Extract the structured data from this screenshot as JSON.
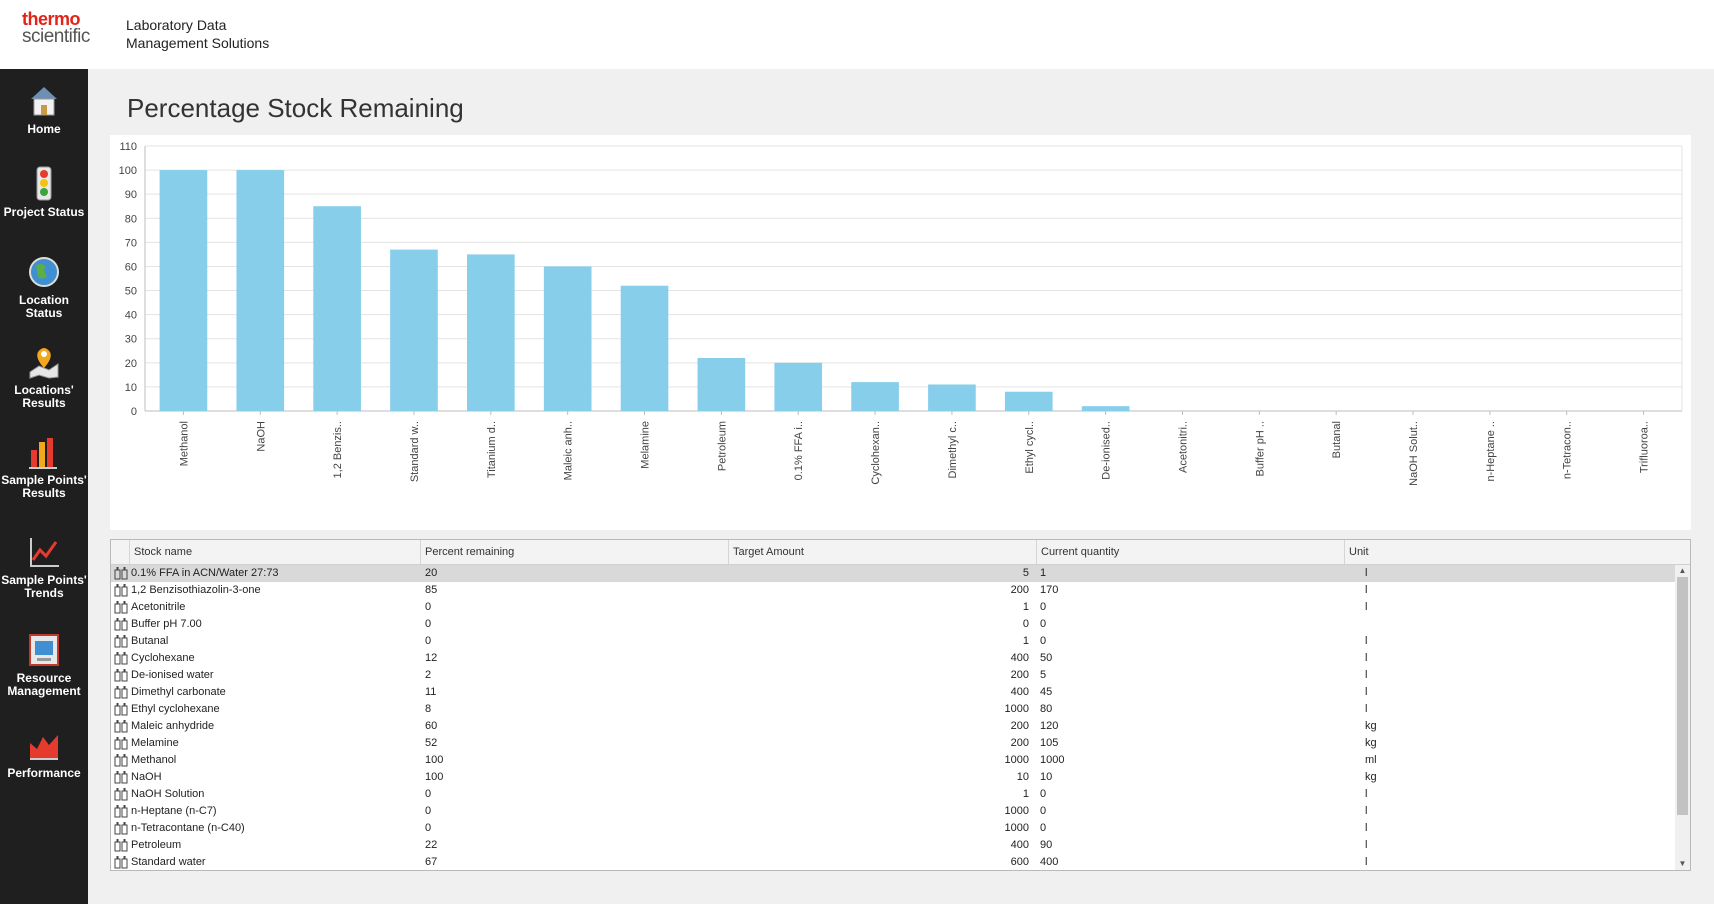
{
  "header": {
    "logo_line1": "thermo",
    "logo_line2": "scientific",
    "title_line1": "Laboratory Data",
    "title_line2": "Management Solutions"
  },
  "sidebar": {
    "items": [
      {
        "label": "Home",
        "icon": "home-icon"
      },
      {
        "label": "Project Status",
        "icon": "traffic-light-icon"
      },
      {
        "label": "Location Status",
        "icon": "globe-icon"
      },
      {
        "label": "Locations' Results",
        "icon": "map-pin-icon"
      },
      {
        "label": "Sample Points' Results",
        "icon": "bar-chart-icon"
      },
      {
        "label": "Sample Points' Trends",
        "icon": "trend-icon"
      },
      {
        "label": "Resource Management",
        "icon": "resource-icon"
      },
      {
        "label": "Performance",
        "icon": "performance-icon"
      }
    ]
  },
  "page": {
    "title": "Percentage Stock Remaining"
  },
  "chart_data": {
    "type": "bar",
    "title": "",
    "xlabel": "",
    "ylabel": "",
    "ylim": [
      0,
      110
    ],
    "yticks": [
      0,
      10,
      20,
      30,
      40,
      50,
      60,
      70,
      80,
      90,
      100,
      110
    ],
    "grid": true,
    "bar_color": "#87ceeb",
    "categories": [
      "Methanol",
      "NaOH",
      "1,2 Benzis..",
      "Standard w..",
      "Titanium d..",
      "Maleic anh..",
      "Melamine",
      "Petroleum",
      "0.1% FFA i..",
      "Cyclohexan..",
      "Dimethyl c..",
      "Ethyl cycl..",
      "De-ionised..",
      "Acetonitri..",
      "Buffer pH ..",
      "Butanal",
      "NaOH Solut..",
      "n-Heptane ..",
      "n-Tetracon..",
      "Trifluoroa.."
    ],
    "values": [
      100,
      100,
      85,
      67,
      65,
      60,
      52,
      22,
      20,
      12,
      11,
      8,
      2,
      0,
      0,
      0,
      0,
      0,
      0,
      0
    ]
  },
  "grid": {
    "columns": [
      "Stock name",
      "Percent remaining",
      "Target Amount",
      "Current quantity",
      "Unit"
    ],
    "rows": [
      {
        "name": "0.1% FFA in ACN/Water 27:73",
        "percent": "20",
        "target": "5",
        "current": "1",
        "unit": "l"
      },
      {
        "name": "1,2 Benzisothiazolin-3-one",
        "percent": "85",
        "target": "200",
        "current": "170",
        "unit": "l"
      },
      {
        "name": "Acetonitrile",
        "percent": "0",
        "target": "1",
        "current": "0",
        "unit": "l"
      },
      {
        "name": "Buffer pH 7.00",
        "percent": "0",
        "target": "0",
        "current": "0",
        "unit": ""
      },
      {
        "name": "Butanal",
        "percent": "0",
        "target": "1",
        "current": "0",
        "unit": "l"
      },
      {
        "name": "Cyclohexane",
        "percent": "12",
        "target": "400",
        "current": "50",
        "unit": "l"
      },
      {
        "name": "De-ionised water",
        "percent": "2",
        "target": "200",
        "current": "5",
        "unit": "l"
      },
      {
        "name": "Dimethyl carbonate",
        "percent": "11",
        "target": "400",
        "current": "45",
        "unit": "l"
      },
      {
        "name": "Ethyl cyclohexane",
        "percent": "8",
        "target": "1000",
        "current": "80",
        "unit": "l"
      },
      {
        "name": "Maleic anhydride",
        "percent": "60",
        "target": "200",
        "current": "120",
        "unit": "kg"
      },
      {
        "name": "Melamine",
        "percent": "52",
        "target": "200",
        "current": "105",
        "unit": "kg"
      },
      {
        "name": "Methanol",
        "percent": "100",
        "target": "1000",
        "current": "1000",
        "unit": "ml"
      },
      {
        "name": "NaOH",
        "percent": "100",
        "target": "10",
        "current": "10",
        "unit": "kg"
      },
      {
        "name": "NaOH Solution",
        "percent": "0",
        "target": "1",
        "current": "0",
        "unit": "l"
      },
      {
        "name": "n-Heptane (n-C7)",
        "percent": "0",
        "target": "1000",
        "current": "0",
        "unit": "l"
      },
      {
        "name": "n-Tetracontane (n-C40)",
        "percent": "0",
        "target": "1000",
        "current": "0",
        "unit": "l"
      },
      {
        "name": "Petroleum",
        "percent": "22",
        "target": "400",
        "current": "90",
        "unit": "l"
      },
      {
        "name": "Standard water",
        "percent": "67",
        "target": "600",
        "current": "400",
        "unit": "l"
      }
    ]
  }
}
